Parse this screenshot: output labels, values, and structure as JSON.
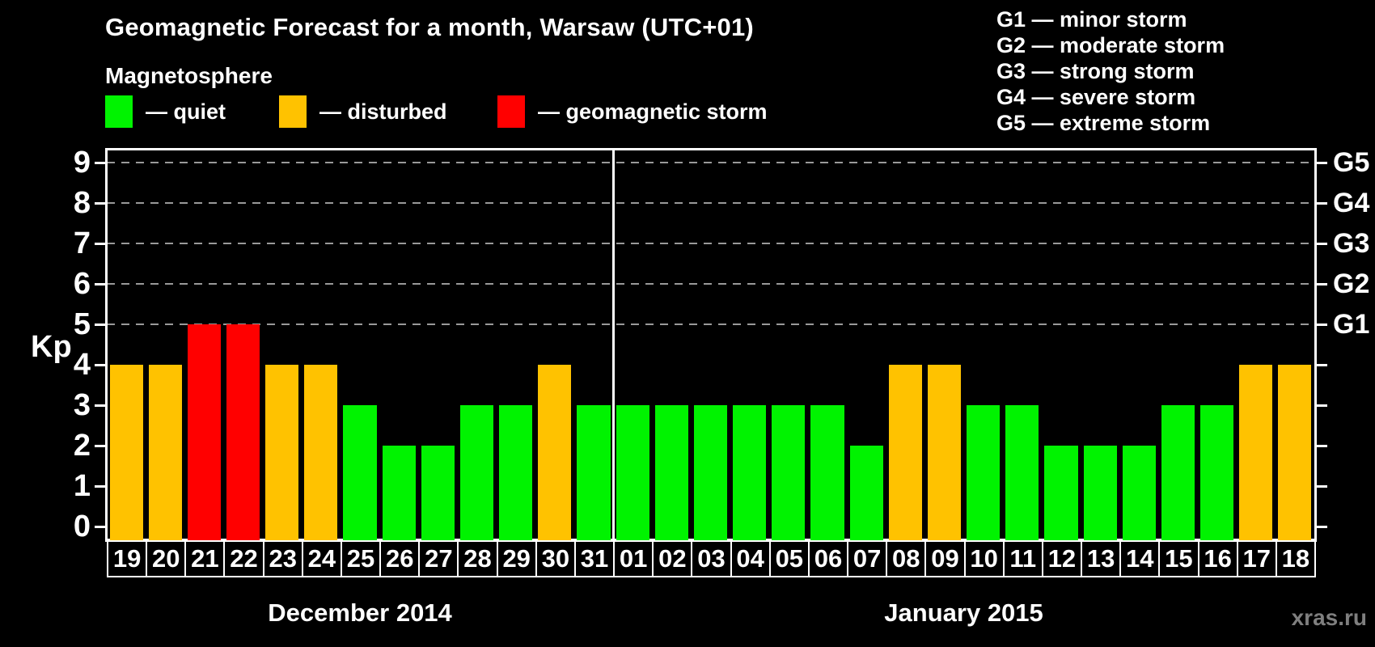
{
  "title": "Geomagnetic Forecast for a month, Warsaw (UTC+01)",
  "subtitle": "Magnetosphere",
  "legend": {
    "items": [
      {
        "key": "quiet",
        "label": "— quiet"
      },
      {
        "key": "disturbed",
        "label": "— disturbed"
      },
      {
        "key": "storm",
        "label": "— geomagnetic storm"
      }
    ]
  },
  "storm_scale_legend": [
    "G1 — minor storm",
    "G2 — moderate storm",
    "G3 — strong storm",
    "G4 — severe storm",
    "G5 — extreme storm"
  ],
  "watermark": "xras.ru",
  "colors": {
    "quiet": "#00f300",
    "disturbed": "#ffc200",
    "storm": "#ff0000",
    "axis": "#ffffff",
    "grid": "#999999",
    "background": "#000000",
    "watermark": "#7f7f7f"
  },
  "chart_data": {
    "type": "bar",
    "title": "Geomagnetic Forecast for a month, Warsaw (UTC+01)",
    "ylabel": "Kp",
    "xlabel": "",
    "ylim": [
      0,
      9
    ],
    "y_ticks": [
      0,
      1,
      2,
      3,
      4,
      5,
      6,
      7,
      8,
      9
    ],
    "gridlines_kp": [
      5,
      6,
      7,
      8,
      9
    ],
    "grid_style": "dashed, G-levels only",
    "legend_position": "top",
    "right_axis": [
      {
        "kp": 5,
        "label": "G1"
      },
      {
        "kp": 6,
        "label": "G2"
      },
      {
        "kp": 7,
        "label": "G3"
      },
      {
        "kp": 8,
        "label": "G4"
      },
      {
        "kp": 9,
        "label": "G5"
      }
    ],
    "months": [
      {
        "label": "December 2014",
        "days": [
          {
            "day": "19",
            "kp": 4,
            "status": "disturbed"
          },
          {
            "day": "20",
            "kp": 4,
            "status": "disturbed"
          },
          {
            "day": "21",
            "kp": 5,
            "status": "storm"
          },
          {
            "day": "22",
            "kp": 5,
            "status": "storm"
          },
          {
            "day": "23",
            "kp": 4,
            "status": "disturbed"
          },
          {
            "day": "24",
            "kp": 4,
            "status": "disturbed"
          },
          {
            "day": "25",
            "kp": 3,
            "status": "quiet"
          },
          {
            "day": "26",
            "kp": 2,
            "status": "quiet"
          },
          {
            "day": "27",
            "kp": 2,
            "status": "quiet"
          },
          {
            "day": "28",
            "kp": 3,
            "status": "quiet"
          },
          {
            "day": "29",
            "kp": 3,
            "status": "quiet"
          },
          {
            "day": "30",
            "kp": 4,
            "status": "disturbed"
          },
          {
            "day": "31",
            "kp": 3,
            "status": "quiet"
          }
        ]
      },
      {
        "label": "January 2015",
        "days": [
          {
            "day": "01",
            "kp": 3,
            "status": "quiet"
          },
          {
            "day": "02",
            "kp": 3,
            "status": "quiet"
          },
          {
            "day": "03",
            "kp": 3,
            "status": "quiet"
          },
          {
            "day": "04",
            "kp": 3,
            "status": "quiet"
          },
          {
            "day": "05",
            "kp": 3,
            "status": "quiet"
          },
          {
            "day": "06",
            "kp": 3,
            "status": "quiet"
          },
          {
            "day": "07",
            "kp": 2,
            "status": "quiet"
          },
          {
            "day": "08",
            "kp": 4,
            "status": "disturbed"
          },
          {
            "day": "09",
            "kp": 4,
            "status": "disturbed"
          },
          {
            "day": "10",
            "kp": 3,
            "status": "quiet"
          },
          {
            "day": "11",
            "kp": 3,
            "status": "quiet"
          },
          {
            "day": "12",
            "kp": 2,
            "status": "quiet"
          },
          {
            "day": "13",
            "kp": 2,
            "status": "quiet"
          },
          {
            "day": "14",
            "kp": 2,
            "status": "quiet"
          },
          {
            "day": "15",
            "kp": 3,
            "status": "quiet"
          },
          {
            "day": "16",
            "kp": 3,
            "status": "quiet"
          },
          {
            "day": "17",
            "kp": 4,
            "status": "disturbed"
          },
          {
            "day": "18",
            "kp": 4,
            "status": "disturbed"
          }
        ]
      }
    ]
  }
}
